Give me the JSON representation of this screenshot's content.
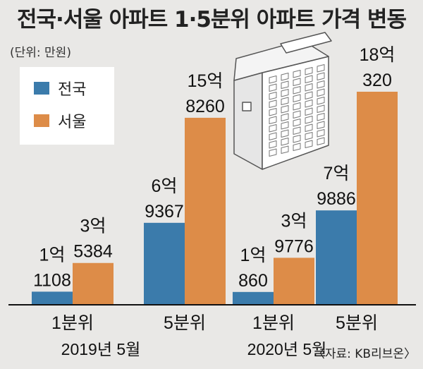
{
  "title": "전국·서울 아파트 1·5분위 아파트 가격 변동",
  "unit": "(단위: 만원)",
  "source": "〈자료: KB리브온〉",
  "legend": {
    "national": "전국",
    "seoul": "서울"
  },
  "colors": {
    "national": "#3b7bab",
    "seoul": "#dd8c48",
    "background": "#e9e8e6"
  },
  "illustration": "apartment-building-icon",
  "chart_data": {
    "type": "bar",
    "title": "전국·서울 아파트 1·5분위 아파트 가격 변동",
    "ylabel": "(단위: 만원)",
    "categories": [
      "1분위",
      "5분위",
      "1분위",
      "5분위"
    ],
    "groups": [
      {
        "label": "2019년 5월",
        "categories": [
          "1분위",
          "5분위"
        ]
      },
      {
        "label": "2020년 5월",
        "categories": [
          "1분위",
          "5분위"
        ]
      }
    ],
    "series": [
      {
        "name": "전국",
        "values": [
          11108,
          69367,
          10860,
          79886
        ],
        "labels": [
          [
            "1억",
            "1108"
          ],
          [
            "6억",
            "9367"
          ],
          [
            "1억",
            "860"
          ],
          [
            "7억",
            "9886"
          ]
        ]
      },
      {
        "name": "서울",
        "values": [
          35384,
          158260,
          39776,
          180320
        ],
        "labels": [
          [
            "3억",
            "5384"
          ],
          [
            "15억",
            "8260"
          ],
          [
            "3억",
            "9776"
          ],
          [
            "18억",
            "320"
          ]
        ]
      }
    ],
    "ylim": [
      0,
      200000
    ],
    "grid": false,
    "legend_position": "top-left"
  }
}
